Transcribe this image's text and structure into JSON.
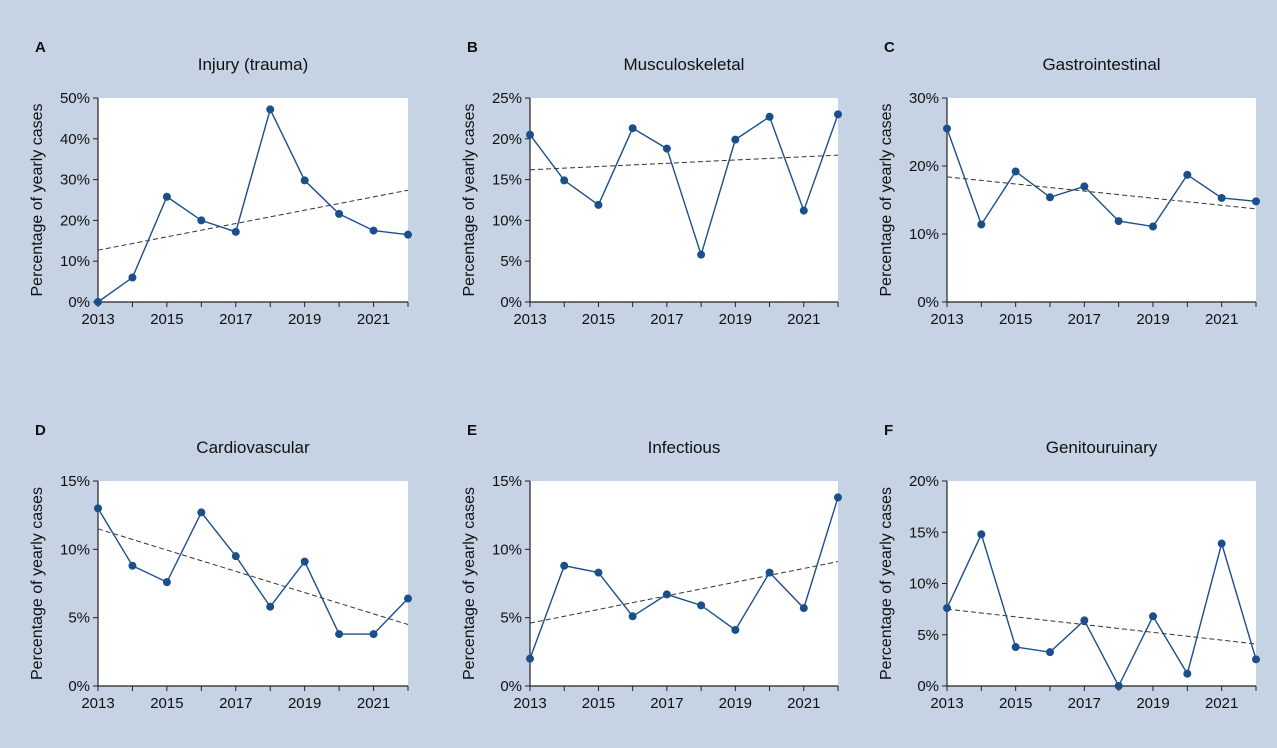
{
  "colors": {
    "background": "#c5d3e4",
    "plot_area": "#ffffff",
    "series": "#1b4f8a",
    "trendline": "#333333",
    "text": "#111111"
  },
  "chart_data": [
    {
      "type": "line",
      "panel": "A",
      "title": "Injury (trauma)",
      "ylabel": "Percentage of yearly cases",
      "xlabel": "",
      "x": [
        2013,
        2014,
        2015,
        2016,
        2017,
        2018,
        2019,
        2020,
        2021,
        2022
      ],
      "values": [
        0,
        6,
        25.8,
        20,
        17.2,
        47.2,
        29.8,
        21.6,
        17.5,
        16.5
      ],
      "trend": [
        12.7,
        27.4
      ],
      "ylim": [
        0,
        50
      ],
      "yticks": [
        0,
        10,
        20,
        30,
        40,
        50
      ],
      "ytick_labels": [
        "0%",
        "10%",
        "20%",
        "30%",
        "40%",
        "50%"
      ],
      "xticks": [
        2013,
        2015,
        2017,
        2019,
        2021
      ],
      "xtick_labels": [
        "2013",
        "2015",
        "2017",
        "2019",
        "2021"
      ],
      "grid": false,
      "legend": "none"
    },
    {
      "type": "line",
      "panel": "B",
      "title": "Musculoskeletal",
      "ylabel": "Percentage of yearly cases",
      "xlabel": "",
      "x": [
        2013,
        2014,
        2015,
        2016,
        2017,
        2018,
        2019,
        2020,
        2021,
        2022
      ],
      "values": [
        20.5,
        14.9,
        11.9,
        21.3,
        18.8,
        5.8,
        19.9,
        22.7,
        11.2,
        23
      ],
      "trend": [
        16.2,
        18
      ],
      "ylim": [
        0,
        25
      ],
      "yticks": [
        0,
        5,
        10,
        15,
        20,
        25
      ],
      "ytick_labels": [
        "0%",
        "5%",
        "10%",
        "15%",
        "20%",
        "25%"
      ],
      "xticks": [
        2013,
        2015,
        2017,
        2019,
        2021
      ],
      "xtick_labels": [
        "2013",
        "2015",
        "2017",
        "2019",
        "2021"
      ],
      "grid": false,
      "legend": "none"
    },
    {
      "type": "line",
      "panel": "C",
      "title": "Gastrointestinal",
      "ylabel": "Percentage of yearly cases",
      "xlabel": "",
      "x": [
        2013,
        2014,
        2015,
        2016,
        2017,
        2018,
        2019,
        2020,
        2021,
        2022
      ],
      "values": [
        25.5,
        11.4,
        19.2,
        15.4,
        17,
        11.9,
        11.1,
        18.7,
        15.3,
        14.8
      ],
      "trend": [
        18.4,
        13.7
      ],
      "ylim": [
        0,
        30
      ],
      "yticks": [
        0,
        10,
        20,
        30
      ],
      "ytick_labels": [
        "0%",
        "10%",
        "20%",
        "30%"
      ],
      "xticks": [
        2013,
        2015,
        2017,
        2019,
        2021
      ],
      "xtick_labels": [
        "2013",
        "2015",
        "2017",
        "2019",
        "2021"
      ],
      "grid": false,
      "legend": "none"
    },
    {
      "type": "line",
      "panel": "D",
      "title": "Cardiovascular",
      "ylabel": "Percentage of yearly cases",
      "xlabel": "",
      "x": [
        2013,
        2014,
        2015,
        2016,
        2017,
        2018,
        2019,
        2020,
        2021,
        2022
      ],
      "values": [
        13,
        8.8,
        7.6,
        12.7,
        9.5,
        5.8,
        9.1,
        3.8,
        3.8,
        6.4
      ],
      "trend": [
        11.5,
        4.5
      ],
      "ylim": [
        0,
        15
      ],
      "yticks": [
        0,
        5,
        10,
        15
      ],
      "ytick_labels": [
        "0%",
        "5%",
        "10%",
        "15%"
      ],
      "xticks": [
        2013,
        2015,
        2017,
        2019,
        2021
      ],
      "xtick_labels": [
        "2013",
        "2015",
        "2017",
        "2019",
        "2021"
      ],
      "grid": false,
      "legend": "none"
    },
    {
      "type": "line",
      "panel": "E",
      "title": "Infectious",
      "ylabel": "Percentage of yearly cases",
      "xlabel": "",
      "x": [
        2013,
        2014,
        2015,
        2016,
        2017,
        2018,
        2019,
        2020,
        2021,
        2022
      ],
      "values": [
        2,
        8.8,
        8.3,
        5.1,
        6.7,
        5.9,
        4.1,
        8.3,
        5.7,
        13.8
      ],
      "trend": [
        4.6,
        9.1
      ],
      "ylim": [
        0,
        15
      ],
      "yticks": [
        0,
        5,
        10,
        15
      ],
      "ytick_labels": [
        "0%",
        "5%",
        "10%",
        "15%"
      ],
      "xticks": [
        2013,
        2015,
        2017,
        2019,
        2021
      ],
      "xtick_labels": [
        "2013",
        "2015",
        "2017",
        "2019",
        "2021"
      ],
      "grid": false,
      "legend": "none"
    },
    {
      "type": "line",
      "panel": "F",
      "title": "Genitouruinary",
      "ylabel": "Percentage of yearly cases",
      "xlabel": "",
      "x": [
        2013,
        2014,
        2015,
        2016,
        2017,
        2018,
        2019,
        2020,
        2021,
        2022
      ],
      "values": [
        7.6,
        14.8,
        3.8,
        3.3,
        6.4,
        0,
        6.8,
        1.2,
        13.9,
        2.6
      ],
      "trend": [
        7.5,
        4.1
      ],
      "ylim": [
        0,
        20
      ],
      "yticks": [
        0,
        5,
        10,
        15,
        20
      ],
      "ytick_labels": [
        "0%",
        "5%",
        "10%",
        "15%",
        "20%"
      ],
      "xticks": [
        2013,
        2015,
        2017,
        2019,
        2021
      ],
      "xtick_labels": [
        "2013",
        "2015",
        "2017",
        "2019",
        "2021"
      ],
      "grid": false,
      "legend": "none"
    }
  ]
}
